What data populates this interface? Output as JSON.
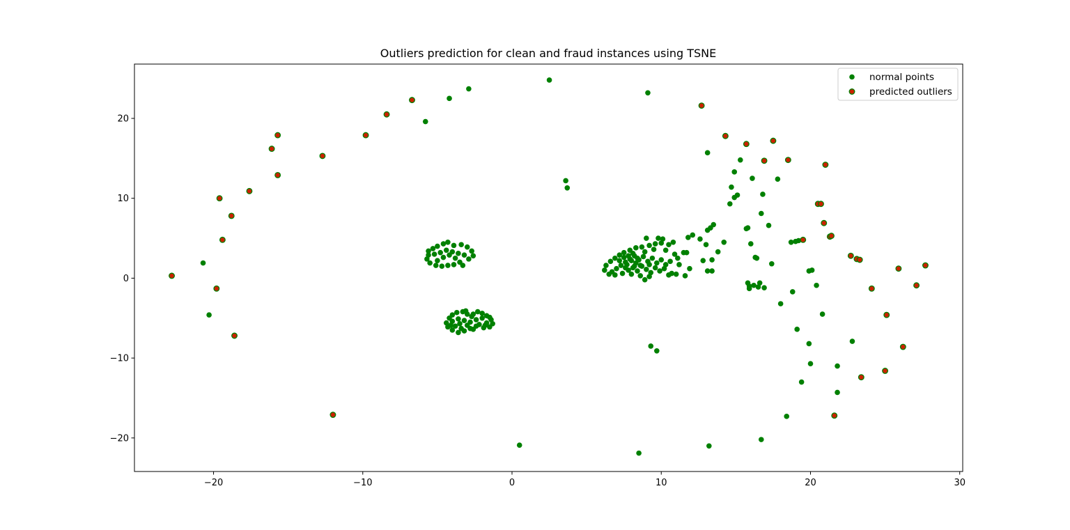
{
  "chart_data": {
    "type": "scatter",
    "title": "Outliers prediction for clean and fraud instances using TSNE",
    "xlabel": "",
    "ylabel": "",
    "xlim": [
      -25.3,
      30.2
    ],
    "ylim": [
      -24.2,
      26.8
    ],
    "xticks": [
      -20,
      -10,
      0,
      10,
      20,
      30
    ],
    "yticks": [
      -20,
      -10,
      0,
      10,
      20
    ],
    "grid": false,
    "legend_position": "top-right",
    "colors": {
      "normal": "#008000",
      "outlier_edge": "#008000",
      "outlier_fill": "#cc2200"
    },
    "series": [
      {
        "name": "normal points",
        "points": [
          [
            -20.7,
            1.9
          ],
          [
            -20.3,
            -4.6
          ],
          [
            -5.8,
            19.6
          ],
          [
            -4.2,
            22.5
          ],
          [
            -2.9,
            23.7
          ],
          [
            2.5,
            24.8
          ],
          [
            3.6,
            12.2
          ],
          [
            3.7,
            11.3
          ],
          [
            9.1,
            23.2
          ],
          [
            13.1,
            15.7
          ],
          [
            0.5,
            -20.9
          ],
          [
            8.5,
            -21.9
          ],
          [
            13.2,
            -21.0
          ],
          [
            16.7,
            -20.2
          ],
          [
            9.3,
            -8.5
          ],
          [
            9.7,
            -9.1
          ],
          [
            18.4,
            -17.3
          ],
          [
            21.8,
            -14.3
          ],
          [
            19.4,
            -13.0
          ],
          [
            20.0,
            -10.7
          ],
          [
            21.8,
            -11.0
          ],
          [
            19.9,
            -8.2
          ],
          [
            19.1,
            -6.4
          ],
          [
            22.8,
            -7.9
          ],
          [
            20.8,
            -4.5
          ],
          [
            18.0,
            -3.2
          ],
          [
            18.8,
            -1.7
          ],
          [
            20.4,
            -0.9
          ],
          [
            19.9,
            0.9
          ],
          [
            20.1,
            1.0
          ],
          [
            17.4,
            1.8
          ],
          [
            18.7,
            4.5
          ],
          [
            19.0,
            4.6
          ],
          [
            19.2,
            4.7
          ],
          [
            17.2,
            6.6
          ],
          [
            16.7,
            8.1
          ],
          [
            16.8,
            10.5
          ],
          [
            16.1,
            12.5
          ],
          [
            17.8,
            12.4
          ],
          [
            15.3,
            14.8
          ],
          [
            14.9,
            13.3
          ],
          [
            14.7,
            11.4
          ],
          [
            15.1,
            10.4
          ],
          [
            14.9,
            10.1
          ],
          [
            14.6,
            9.3
          ],
          [
            15.7,
            6.2
          ],
          [
            15.8,
            6.3
          ],
          [
            16.0,
            4.3
          ],
          [
            16.3,
            2.6
          ],
          [
            16.4,
            2.5
          ],
          [
            15.8,
            -0.6
          ],
          [
            15.9,
            -1.0
          ],
          [
            16.2,
            -0.9
          ],
          [
            16.6,
            -0.6
          ],
          [
            16.9,
            -1.2
          ],
          [
            16.5,
            -1.1
          ],
          [
            15.9,
            -1.3
          ],
          [
            14.2,
            4.5
          ],
          [
            13.8,
            3.3
          ],
          [
            13.4,
            2.3
          ],
          [
            13.0,
            4.2
          ],
          [
            13.1,
            6.0
          ],
          [
            13.3,
            6.3
          ],
          [
            13.5,
            6.7
          ],
          [
            12.6,
            4.9
          ],
          [
            12.1,
            5.4
          ],
          [
            11.8,
            5.1
          ],
          [
            12.8,
            2.2
          ],
          [
            11.9,
            1.2
          ],
          [
            11.6,
            0.3
          ],
          [
            13.1,
            0.9
          ],
          [
            13.4,
            0.9
          ],
          [
            11.0,
            0.5
          ],
          [
            10.7,
            0.6
          ],
          [
            10.5,
            0.4
          ],
          [
            11.2,
            1.7
          ],
          [
            11.5,
            3.2
          ],
          [
            11.7,
            3.2
          ],
          [
            -5.6,
            3.4
          ],
          [
            -5.3,
            3.7
          ],
          [
            -5.0,
            4.0
          ],
          [
            -4.6,
            4.3
          ],
          [
            -4.3,
            4.5
          ],
          [
            -3.9,
            4.1
          ],
          [
            -3.4,
            4.2
          ],
          [
            -3.0,
            3.9
          ],
          [
            -2.7,
            3.4
          ],
          [
            -2.6,
            2.8
          ],
          [
            -2.9,
            2.4
          ],
          [
            -3.5,
            2.0
          ],
          [
            -3.9,
            1.7
          ],
          [
            -4.3,
            1.6
          ],
          [
            -4.7,
            1.5
          ],
          [
            -5.1,
            1.6
          ],
          [
            -5.5,
            1.9
          ],
          [
            -5.7,
            2.4
          ],
          [
            -5.6,
            2.9
          ],
          [
            -5.2,
            3.0
          ],
          [
            -4.8,
            3.2
          ],
          [
            -4.4,
            3.5
          ],
          [
            -4.0,
            3.3
          ],
          [
            -3.6,
            3.1
          ],
          [
            -3.2,
            2.9
          ],
          [
            -4.6,
            2.6
          ],
          [
            -4.2,
            2.9
          ],
          [
            -3.8,
            2.5
          ],
          [
            -5.0,
            2.2
          ],
          [
            -3.3,
            1.6
          ],
          [
            -4.2,
            -5.0
          ],
          [
            -4.0,
            -4.6
          ],
          [
            -3.7,
            -4.3
          ],
          [
            -3.3,
            -4.2
          ],
          [
            -3.0,
            -4.5
          ],
          [
            -2.7,
            -4.8
          ],
          [
            -2.3,
            -4.2
          ],
          [
            -2.0,
            -4.4
          ],
          [
            -1.7,
            -4.7
          ],
          [
            -1.4,
            -5.2
          ],
          [
            -1.3,
            -5.7
          ],
          [
            -1.5,
            -6.1
          ],
          [
            -1.9,
            -6.2
          ],
          [
            -2.4,
            -6.0
          ],
          [
            -2.8,
            -6.3
          ],
          [
            -3.2,
            -6.6
          ],
          [
            -3.6,
            -6.8
          ],
          [
            -4.0,
            -6.5
          ],
          [
            -4.3,
            -6.1
          ],
          [
            -4.4,
            -5.6
          ],
          [
            -4.0,
            -5.4
          ],
          [
            -3.6,
            -5.1
          ],
          [
            -3.2,
            -5.3
          ],
          [
            -2.8,
            -5.5
          ],
          [
            -2.4,
            -5.2
          ],
          [
            -2.0,
            -5.0
          ],
          [
            -1.7,
            -5.6
          ],
          [
            -2.2,
            -5.8
          ],
          [
            -3.0,
            -5.9
          ],
          [
            -3.5,
            -5.7
          ],
          [
            -3.8,
            -6.0
          ],
          [
            -2.6,
            -4.5
          ],
          [
            -3.1,
            -4.1
          ],
          [
            -1.8,
            -5.9
          ],
          [
            -2.6,
            -6.4
          ],
          [
            -3.4,
            -6.3
          ],
          [
            -4.1,
            -5.9
          ],
          [
            -1.5,
            -4.9
          ],
          [
            6.3,
            1.6
          ],
          [
            6.6,
            2.1
          ],
          [
            6.9,
            2.5
          ],
          [
            7.2,
            2.9
          ],
          [
            7.5,
            3.2
          ],
          [
            7.9,
            3.5
          ],
          [
            8.3,
            3.8
          ],
          [
            8.7,
            3.9
          ],
          [
            9.2,
            4.1
          ],
          [
            9.6,
            4.3
          ],
          [
            10.0,
            4.4
          ],
          [
            10.5,
            4.2
          ],
          [
            10.8,
            4.5
          ],
          [
            9.0,
            5.0
          ],
          [
            9.8,
            5.0
          ],
          [
            10.1,
            4.9
          ],
          [
            7.6,
            2.0
          ],
          [
            7.9,
            2.4
          ],
          [
            8.2,
            2.8
          ],
          [
            8.5,
            2.3
          ],
          [
            8.8,
            2.7
          ],
          [
            9.1,
            2.1
          ],
          [
            9.4,
            2.5
          ],
          [
            9.7,
            1.9
          ],
          [
            10.0,
            2.3
          ],
          [
            10.3,
            1.7
          ],
          [
            10.6,
            2.1
          ],
          [
            7.3,
            1.6
          ],
          [
            7.0,
            1.2
          ],
          [
            6.7,
            0.8
          ],
          [
            6.9,
            0.4
          ],
          [
            7.4,
            0.6
          ],
          [
            7.8,
            1.0
          ],
          [
            8.1,
            1.3
          ],
          [
            8.4,
            0.9
          ],
          [
            8.7,
            1.5
          ],
          [
            9.0,
            1.1
          ],
          [
            9.3,
            0.7
          ],
          [
            9.6,
            1.3
          ],
          [
            9.9,
            0.9
          ],
          [
            10.2,
            1.2
          ],
          [
            8.6,
            0.3
          ],
          [
            8.9,
            -0.2
          ],
          [
            9.2,
            0.2
          ],
          [
            8.0,
            0.5
          ],
          [
            7.5,
            2.6
          ],
          [
            8.1,
            3.1
          ],
          [
            8.9,
            3.3
          ],
          [
            9.5,
            3.6
          ],
          [
            10.3,
            3.5
          ],
          [
            10.9,
            3.0
          ],
          [
            11.1,
            2.5
          ],
          [
            7.7,
            1.7
          ],
          [
            8.3,
            1.9
          ],
          [
            8.6,
            1.6
          ],
          [
            9.2,
            1.7
          ],
          [
            6.2,
            1.0
          ],
          [
            6.5,
            0.5
          ],
          [
            7.2,
            2.2
          ],
          [
            7.8,
            2.8
          ],
          [
            8.0,
            2.2
          ],
          [
            8.4,
            2.5
          ],
          [
            8.2,
            1.5
          ],
          [
            7.6,
            1.3
          ]
        ]
      },
      {
        "name": "predicted outliers",
        "points": [
          [
            -22.8,
            0.3
          ],
          [
            -19.8,
            -1.3
          ],
          [
            -18.6,
            -7.2
          ],
          [
            -19.4,
            4.8
          ],
          [
            -19.6,
            10.0
          ],
          [
            -18.8,
            7.8
          ],
          [
            -17.6,
            10.9
          ],
          [
            -16.1,
            16.2
          ],
          [
            -15.7,
            17.9
          ],
          [
            -15.7,
            12.9
          ],
          [
            -12.7,
            15.3
          ],
          [
            -12.0,
            -17.1
          ],
          [
            -9.8,
            17.9
          ],
          [
            -8.4,
            20.5
          ],
          [
            -6.7,
            22.3
          ],
          [
            12.7,
            21.6
          ],
          [
            14.3,
            17.8
          ],
          [
            15.7,
            16.8
          ],
          [
            16.9,
            14.7
          ],
          [
            17.5,
            17.2
          ],
          [
            18.5,
            14.8
          ],
          [
            21.0,
            14.2
          ],
          [
            20.5,
            9.3
          ],
          [
            20.7,
            9.3
          ],
          [
            20.9,
            6.9
          ],
          [
            21.3,
            5.2
          ],
          [
            21.4,
            5.3
          ],
          [
            19.5,
            4.8
          ],
          [
            22.7,
            2.8
          ],
          [
            23.1,
            2.4
          ],
          [
            23.3,
            2.3
          ],
          [
            25.9,
            1.2
          ],
          [
            27.7,
            1.6
          ],
          [
            27.1,
            -0.9
          ],
          [
            24.1,
            -1.3
          ],
          [
            25.1,
            -4.6
          ],
          [
            26.2,
            -8.6
          ],
          [
            23.4,
            -12.4
          ],
          [
            25.0,
            -11.6
          ],
          [
            21.6,
            -17.2
          ]
        ]
      }
    ]
  }
}
